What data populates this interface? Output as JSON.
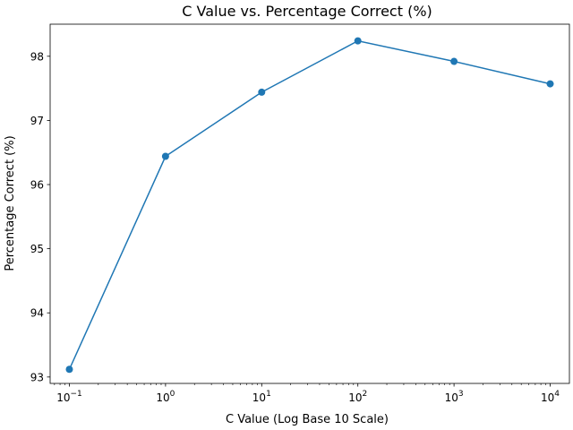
{
  "chart_data": {
    "type": "line",
    "title": "C Value vs. Percentage Correct (%)",
    "xlabel": "C Value (Log Base 10 Scale)",
    "ylabel": "Percentage Correct (%)",
    "xscale": "log10",
    "x": [
      0.1,
      1,
      10,
      100,
      1000,
      10000
    ],
    "series": [
      {
        "values": [
          93.12,
          96.44,
          97.44,
          98.24,
          97.92,
          97.57
        ]
      }
    ],
    "xticks": [
      {
        "value": 0.1,
        "base": "10",
        "exp": "−1"
      },
      {
        "value": 1,
        "base": "10",
        "exp": "0"
      },
      {
        "value": 10,
        "base": "10",
        "exp": "1"
      },
      {
        "value": 100,
        "base": "10",
        "exp": "2"
      },
      {
        "value": 1000,
        "base": "10",
        "exp": "3"
      },
      {
        "value": 10000,
        "base": "10",
        "exp": "4"
      }
    ],
    "yticks": [
      {
        "value": 93,
        "label": "93"
      },
      {
        "value": 94,
        "label": "94"
      },
      {
        "value": 95,
        "label": "95"
      },
      {
        "value": 96,
        "label": "96"
      },
      {
        "value": 97,
        "label": "97"
      },
      {
        "value": 98,
        "label": "98"
      }
    ],
    "xlim": [
      0.0631,
      15849
    ],
    "ylim": [
      92.9,
      98.5
    ],
    "grid": false,
    "line_color": "#1f77b4",
    "marker": "circle"
  }
}
